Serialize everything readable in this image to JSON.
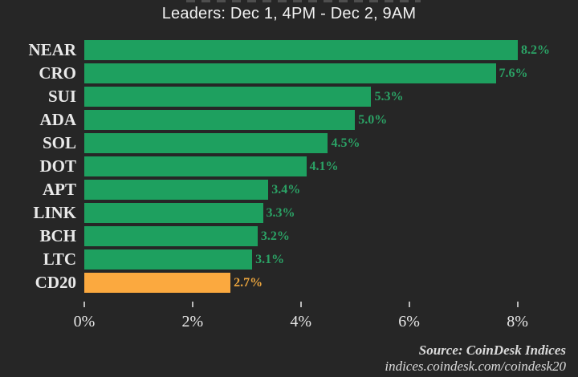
{
  "title": "Leaders: Dec 1, 4PM - Dec 2, 9AM",
  "source": {
    "line1": "Source: CoinDesk Indices",
    "line2": "indices.coindesk.com/coindesk20"
  },
  "colors": {
    "background": "#262626",
    "bar_green": "#1ea05f",
    "bar_orange": "#fba93f",
    "value_label_green": "#2ba265",
    "value_label_orange": "#e8a33d",
    "text": "#e9e9e9"
  },
  "chart_data": {
    "type": "bar",
    "orientation": "horizontal",
    "title": "Leaders: Dec 1, 4PM - Dec 2, 9AM",
    "categories": [
      "NEAR",
      "CRO",
      "SUI",
      "ADA",
      "SOL",
      "DOT",
      "APT",
      "LINK",
      "BCH",
      "LTC",
      "CD20"
    ],
    "values": [
      8.2,
      7.6,
      5.3,
      5.0,
      4.5,
      4.1,
      3.4,
      3.3,
      3.2,
      3.1,
      2.7
    ],
    "value_labels": [
      "8.2%",
      "7.6%",
      "5.3%",
      "5.0%",
      "4.5%",
      "4.1%",
      "3.4%",
      "3.3%",
      "3.2%",
      "3.1%",
      "2.7%"
    ],
    "highlight_category": "CD20",
    "xlabel": "",
    "ylabel": "",
    "x_ticks": [
      "0%",
      "2%",
      "4%",
      "6%",
      "8%"
    ],
    "x_tick_values": [
      0,
      2,
      4,
      6,
      8
    ],
    "xlim": [
      0,
      8.6
    ],
    "grid": false,
    "legend": false
  }
}
